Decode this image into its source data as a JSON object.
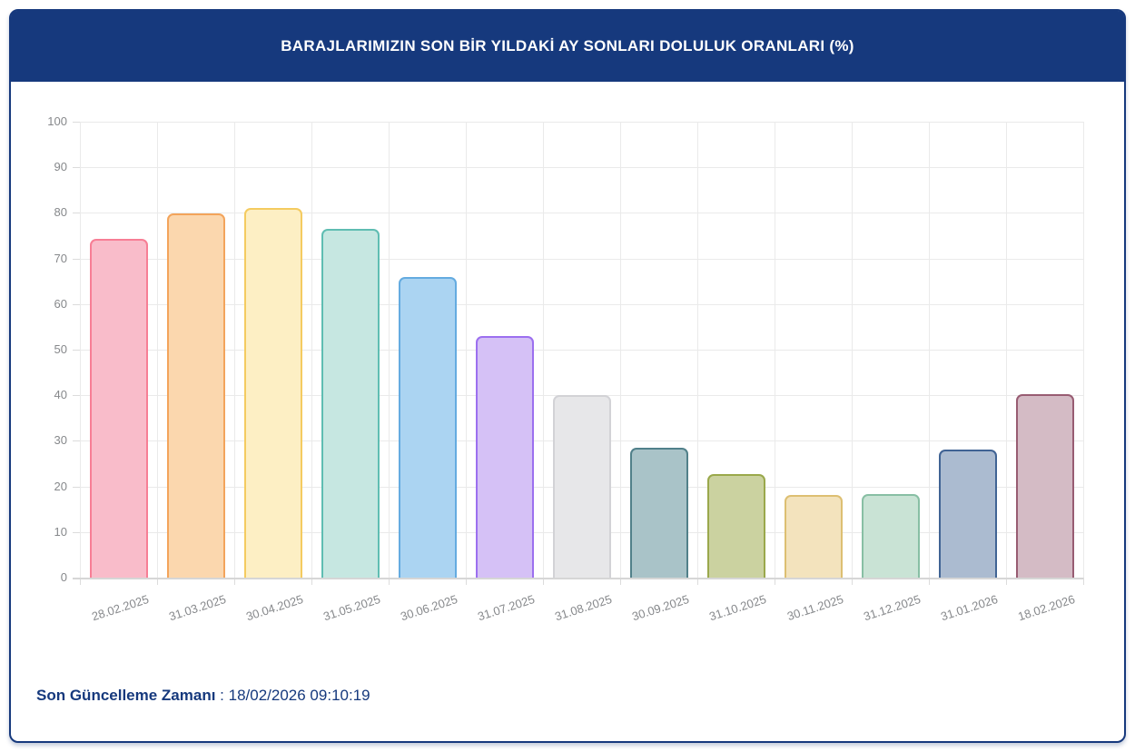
{
  "header": {
    "title": "BARAJLARIMIZIN SON BİR YILDAKİ AY SONLARI DOLULUK ORANLARI (%)"
  },
  "footer": {
    "label": "Son Güncelleme Zamanı",
    "separator": " : ",
    "value": "18/02/2026 09:10:19"
  },
  "colors": {
    "header_bg": "#16397D",
    "card_border": "#16397D",
    "footer_text": "#16397D",
    "grid": "#EAEAEA",
    "axis_line": "#D6D6D6",
    "tick_text": "#86888B"
  },
  "chart_data": {
    "type": "bar",
    "title": "BARAJLARIMIZIN SON BİR YILDAKİ AY SONLARI DOLULUK ORANLARI (%)",
    "xlabel": "",
    "ylabel": "",
    "ylim": [
      0,
      100
    ],
    "yticks": [
      0,
      10,
      20,
      30,
      40,
      50,
      60,
      70,
      80,
      90,
      100
    ],
    "grid": true,
    "legend": false,
    "categories": [
      "28.02.2025",
      "31.03.2025",
      "30.04.2025",
      "31.05.2025",
      "30.06.2025",
      "31.07.2025",
      "31.08.2025",
      "30.09.2025",
      "31.10.2025",
      "30.11.2025",
      "31.12.2025",
      "31.01.2026",
      "18.02.2026"
    ],
    "values": [
      74.3,
      79.8,
      81.1,
      76.4,
      66.0,
      52.9,
      40.1,
      28.5,
      22.8,
      18.1,
      18.4,
      28.0,
      40.3
    ],
    "bar_fill_colors": [
      "#F9BCCA",
      "#FBD7AE",
      "#FDEFC4",
      "#C6E7E1",
      "#ABD4F2",
      "#D5C1F6",
      "#E7E7E9",
      "#A9C3C8",
      "#CBD2A0",
      "#F3E3BD",
      "#C9E3D5",
      "#ABBBD0",
      "#D4BBC5"
    ],
    "bar_border_colors": [
      "#F77E95",
      "#F3A45B",
      "#F4CB60",
      "#5FBDB2",
      "#64ABE0",
      "#9C6FEF",
      "#D2D2D6",
      "#51808A",
      "#9AA84B",
      "#DDBF72",
      "#88BFA4",
      "#406394",
      "#985C72"
    ]
  }
}
